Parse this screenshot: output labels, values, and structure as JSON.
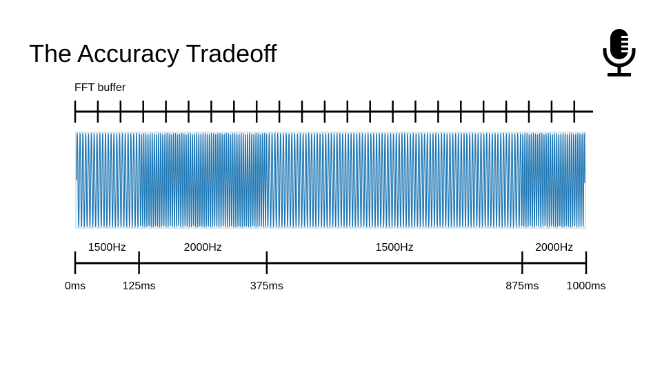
{
  "title": "The Accuracy Tradeoff",
  "icons": {
    "mic": "microphone-icon"
  },
  "buffer": {
    "label": "FFT buffer",
    "tick_count": 23
  },
  "colors": {
    "wave": "#1f77b4",
    "axis": "#000000"
  },
  "segments": [
    {
      "label": "1500Hz",
      "start_ms": 0,
      "end_ms": 125,
      "freq": 1500
    },
    {
      "label": "2000Hz",
      "start_ms": 125,
      "end_ms": 375,
      "freq": 2000
    },
    {
      "label": "1500Hz",
      "start_ms": 375,
      "end_ms": 875,
      "freq": 1500
    },
    {
      "label": "2000Hz",
      "start_ms": 875,
      "end_ms": 1000,
      "freq": 2000
    }
  ],
  "timeline": {
    "ticks": [
      {
        "ms": 0,
        "label": "0ms"
      },
      {
        "ms": 125,
        "label": "125ms"
      },
      {
        "ms": 375,
        "label": "375ms"
      },
      {
        "ms": 875,
        "label": "875ms"
      },
      {
        "ms": 1000,
        "label": "1000ms"
      }
    ]
  }
}
